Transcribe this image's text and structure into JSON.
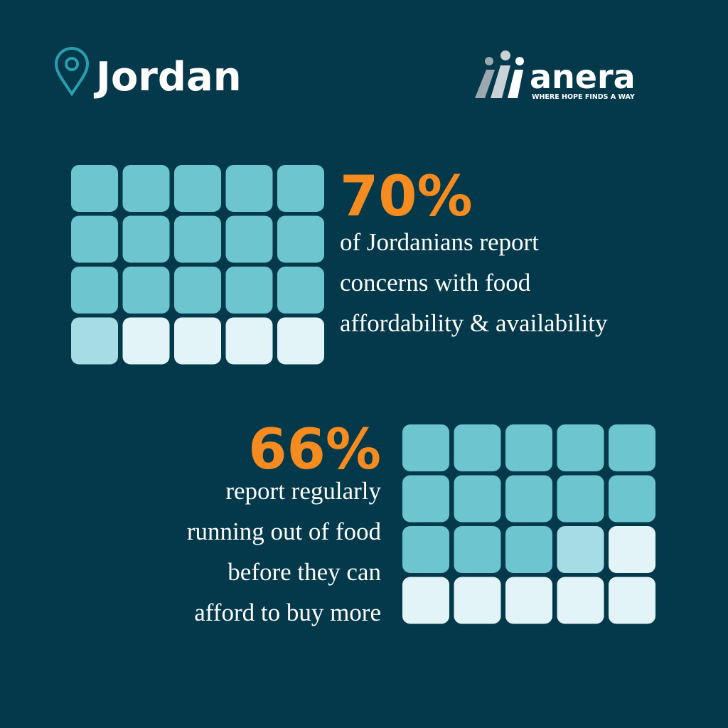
{
  "header": {
    "location": "Jordan"
  },
  "logo": {
    "name": "anera",
    "tagline": "WHERE HOPE FINDS A WAY"
  },
  "stats": [
    {
      "figure": "70%",
      "lines": [
        "of Jordanians report",
        "concerns with food",
        "affordability & availability"
      ]
    },
    {
      "figure": "66%",
      "lines": [
        "report regularly",
        "running out of food",
        "before they can",
        "afford to buy more"
      ]
    }
  ]
}
